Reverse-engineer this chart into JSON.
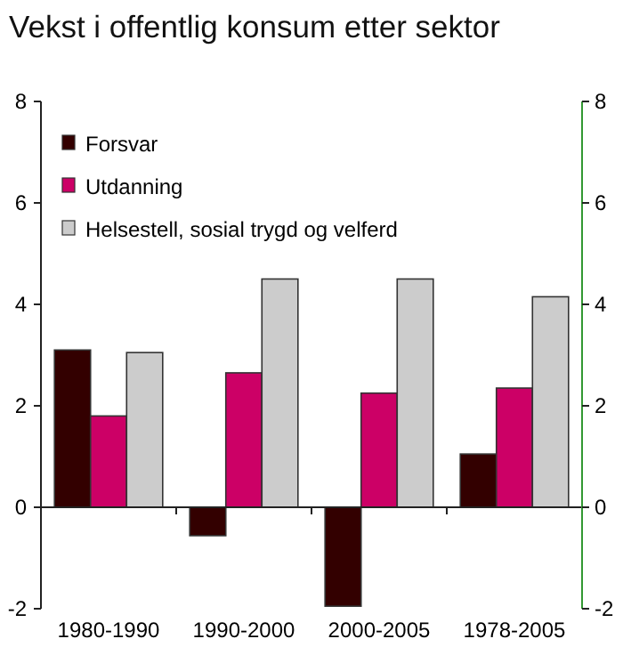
{
  "chart_data": {
    "type": "bar",
    "title": "Vekst i offentlig konsum etter sektor",
    "categories": [
      "1980-1990",
      "1990-2000",
      "2000-2005",
      "1978-2005"
    ],
    "series": [
      {
        "name": "Forsvar",
        "color": "#330000",
        "values": [
          3.1,
          -0.56,
          -1.95,
          1.05
        ]
      },
      {
        "name": "Utdanning",
        "color": "#cc0066",
        "values": [
          1.8,
          2.65,
          2.25,
          2.35
        ]
      },
      {
        "name": "Helsestell, sosial trygd og velferd",
        "color": "#cccccc",
        "values": [
          3.05,
          4.5,
          4.5,
          4.15
        ]
      }
    ],
    "ylim": [
      -2,
      8
    ],
    "yticks": [
      -2,
      0,
      2,
      4,
      6,
      8
    ],
    "y2lim": [
      -2,
      8
    ],
    "y2ticks": [
      -2,
      0,
      2,
      4,
      6,
      8
    ],
    "legend": "top left"
  }
}
